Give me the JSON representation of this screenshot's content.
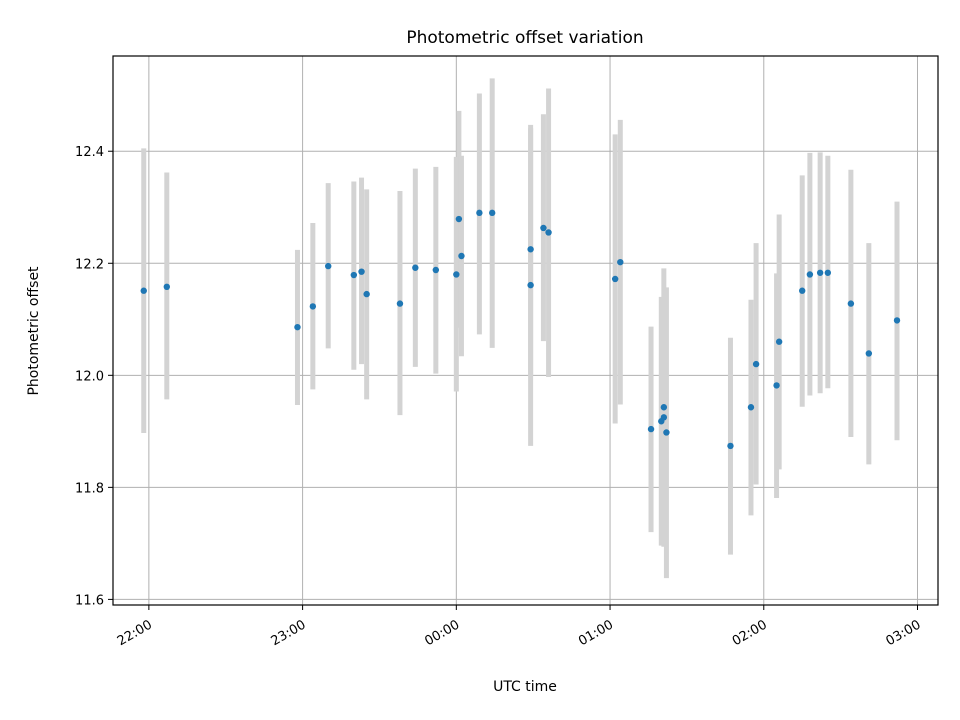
{
  "chart_data": {
    "type": "scatter",
    "title": "Photometric offset variation",
    "xlabel": "UTC time",
    "ylabel": "Photometric offset",
    "xlim": [
      "21:46",
      "03:08"
    ],
    "ylim": [
      11.59,
      12.57
    ],
    "xticks": [
      "22:00",
      "23:00",
      "00:00",
      "01:00",
      "02:00",
      "03:00"
    ],
    "yticks": [
      "11.6",
      "11.8",
      "12.0",
      "12.2",
      "12.4"
    ],
    "grid": true,
    "series": [
      {
        "points": [
          {
            "t": "21:58",
            "y": 12.151,
            "lo": 11.897,
            "hi": 12.405
          },
          {
            "t": "22:07",
            "y": 12.158,
            "lo": 11.957,
            "hi": 12.362
          },
          {
            "t": "22:58",
            "y": 12.086,
            "lo": 11.947,
            "hi": 12.224
          },
          {
            "t": "23:04",
            "y": 12.123,
            "lo": 11.975,
            "hi": 12.272
          },
          {
            "t": "23:10",
            "y": 12.195,
            "lo": 12.048,
            "hi": 12.343
          },
          {
            "t": "23:20",
            "y": 12.179,
            "lo": 12.01,
            "hi": 12.346
          },
          {
            "t": "23:23",
            "y": 12.185,
            "lo": 12.02,
            "hi": 12.353
          },
          {
            "t": "23:25",
            "y": 12.145,
            "lo": 11.957,
            "hi": 12.332
          },
          {
            "t": "23:38",
            "y": 12.128,
            "lo": 11.929,
            "hi": 12.329
          },
          {
            "t": "23:44",
            "y": 12.192,
            "lo": 12.015,
            "hi": 12.369
          },
          {
            "t": "23:52",
            "y": 12.188,
            "lo": 12.003,
            "hi": 12.372
          },
          {
            "t": "00:00",
            "y": 12.18,
            "lo": 11.971,
            "hi": 12.39
          },
          {
            "t": "00:01",
            "y": 12.279,
            "lo": 12.085,
            "hi": 12.472
          },
          {
            "t": "00:02",
            "y": 12.213,
            "lo": 12.034,
            "hi": 12.392
          },
          {
            "t": "00:09",
            "y": 12.29,
            "lo": 12.073,
            "hi": 12.503
          },
          {
            "t": "00:14",
            "y": 12.29,
            "lo": 12.049,
            "hi": 12.53
          },
          {
            "t": "00:29",
            "y": 12.161,
            "lo": 11.874,
            "hi": 12.447
          },
          {
            "t": "00:29",
            "y": 12.225,
            "lo": 12.0,
            "hi": 12.441
          },
          {
            "t": "00:34",
            "y": 12.263,
            "lo": 12.061,
            "hi": 12.466
          },
          {
            "t": "00:36",
            "y": 12.255,
            "lo": 11.997,
            "hi": 12.512
          },
          {
            "t": "01:02",
            "y": 12.172,
            "lo": 11.914,
            "hi": 12.43
          },
          {
            "t": "01:04",
            "y": 12.202,
            "lo": 11.948,
            "hi": 12.456
          },
          {
            "t": "01:16",
            "y": 11.904,
            "lo": 11.72,
            "hi": 12.087
          },
          {
            "t": "01:20",
            "y": 11.918,
            "lo": 11.696,
            "hi": 12.14
          },
          {
            "t": "01:21",
            "y": 11.925,
            "lo": 11.714,
            "hi": 12.1
          },
          {
            "t": "01:21",
            "y": 11.943,
            "lo": 11.694,
            "hi": 12.191
          },
          {
            "t": "01:22",
            "y": 11.898,
            "lo": 11.638,
            "hi": 12.157
          },
          {
            "t": "01:47",
            "y": 11.874,
            "lo": 11.68,
            "hi": 12.067
          },
          {
            "t": "01:55",
            "y": 11.943,
            "lo": 11.75,
            "hi": 12.135
          },
          {
            "t": "01:57",
            "y": 12.02,
            "lo": 11.805,
            "hi": 12.236
          },
          {
            "t": "02:05",
            "y": 11.982,
            "lo": 11.781,
            "hi": 12.182
          },
          {
            "t": "02:06",
            "y": 12.06,
            "lo": 11.832,
            "hi": 12.287
          },
          {
            "t": "02:15",
            "y": 12.151,
            "lo": 11.944,
            "hi": 12.357
          },
          {
            "t": "02:18",
            "y": 12.18,
            "lo": 11.964,
            "hi": 12.397
          },
          {
            "t": "02:22",
            "y": 12.183,
            "lo": 11.968,
            "hi": 12.398
          },
          {
            "t": "02:25",
            "y": 12.183,
            "lo": 11.977,
            "hi": 12.392
          },
          {
            "t": "02:34",
            "y": 12.128,
            "lo": 11.89,
            "hi": 12.367
          },
          {
            "t": "02:41",
            "y": 12.039,
            "lo": 11.841,
            "hi": 12.236
          },
          {
            "t": "02:52",
            "y": 12.098,
            "lo": 11.884,
            "hi": 12.31
          }
        ]
      }
    ],
    "colors": {
      "point": "#1f77b4",
      "errorbar": "#d3d3d3",
      "grid": "#b0b0b0",
      "axes": "#000000"
    }
  }
}
